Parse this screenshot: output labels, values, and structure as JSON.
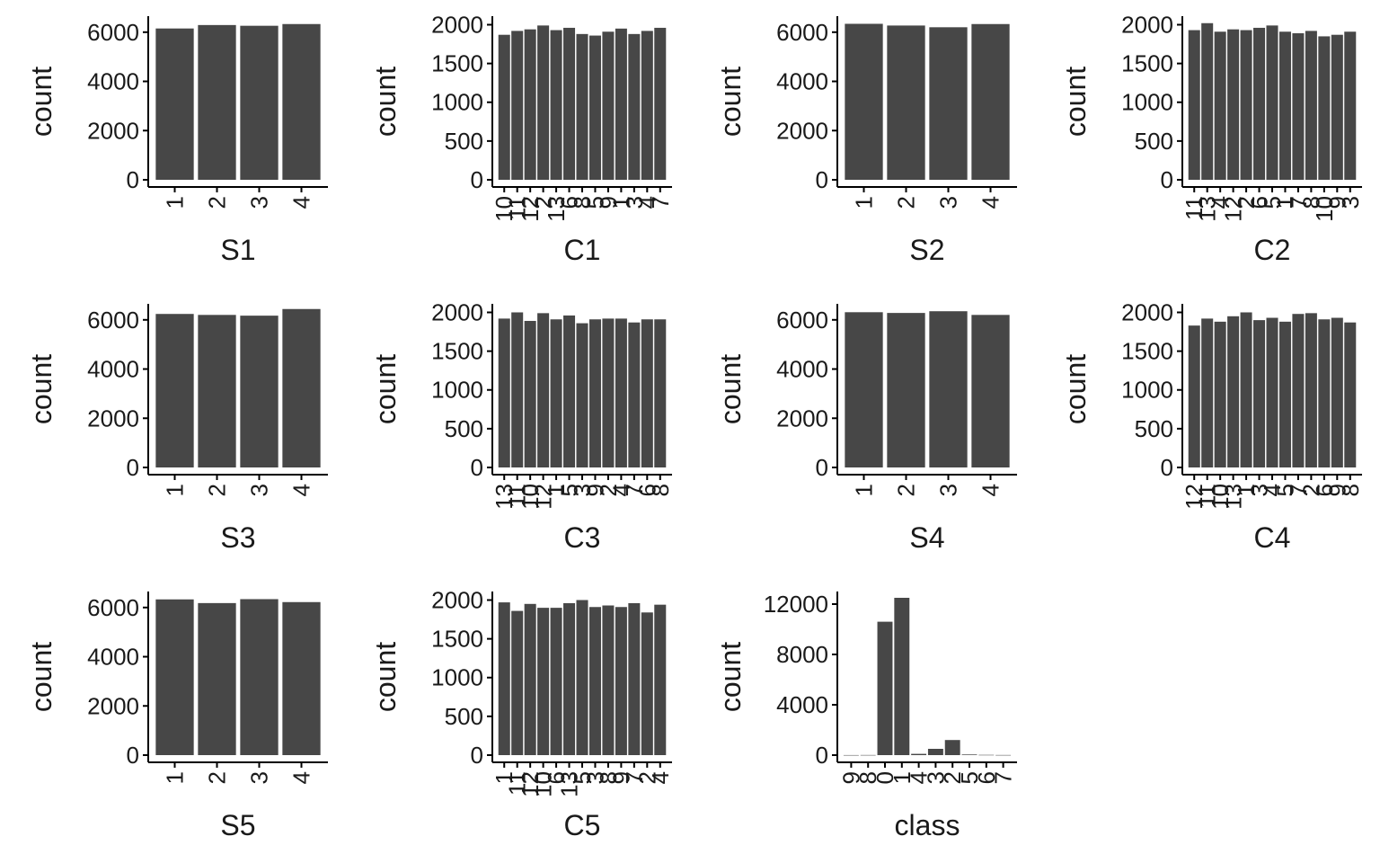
{
  "chart_data": [
    {
      "type": "bar",
      "xlabel": "S1",
      "ylabel": "count",
      "categories": [
        "1",
        "2",
        "3",
        "4"
      ],
      "values": [
        6150,
        6290,
        6260,
        6330
      ],
      "yticks": [
        0,
        2000,
        4000,
        6000
      ],
      "ylim": [
        0,
        6650
      ]
    },
    {
      "type": "bar",
      "xlabel": "C1",
      "ylabel": "count",
      "categories": [
        "10",
        "11",
        "12",
        "2",
        "13",
        "6",
        "8",
        "5",
        "9",
        "1",
        "3",
        "4",
        "7"
      ],
      "values": [
        1870,
        1920,
        1940,
        1990,
        1930,
        1960,
        1880,
        1860,
        1910,
        1950,
        1880,
        1920,
        1960
      ],
      "yticks": [
        0,
        500,
        1000,
        1500,
        2000
      ],
      "ylim": [
        0,
        2110
      ]
    },
    {
      "type": "bar",
      "xlabel": "S2",
      "ylabel": "count",
      "categories": [
        "1",
        "2",
        "3",
        "4"
      ],
      "values": [
        6340,
        6270,
        6200,
        6330
      ],
      "yticks": [
        0,
        2000,
        4000,
        6000
      ],
      "ylim": [
        0,
        6650
      ]
    },
    {
      "type": "bar",
      "xlabel": "C2",
      "ylabel": "count",
      "categories": [
        "11",
        "13",
        "4",
        "12",
        "2",
        "6",
        "5",
        "1",
        "7",
        "8",
        "10",
        "9",
        "3"
      ],
      "values": [
        1930,
        2020,
        1910,
        1940,
        1930,
        1960,
        1990,
        1910,
        1890,
        1920,
        1850,
        1870,
        1910
      ],
      "yticks": [
        0,
        500,
        1000,
        1500,
        2000
      ],
      "ylim": [
        0,
        2110
      ]
    },
    {
      "type": "bar",
      "xlabel": "S3",
      "ylabel": "count",
      "categories": [
        "1",
        "2",
        "3",
        "4"
      ],
      "values": [
        6240,
        6200,
        6170,
        6440
      ],
      "yticks": [
        0,
        2000,
        4000,
        6000
      ],
      "ylim": [
        0,
        6650
      ]
    },
    {
      "type": "bar",
      "xlabel": "C3",
      "ylabel": "count",
      "categories": [
        "13",
        "11",
        "10",
        "12",
        "1",
        "5",
        "3",
        "9",
        "2",
        "4",
        "7",
        "6",
        "8"
      ],
      "values": [
        1920,
        2000,
        1890,
        1990,
        1910,
        1960,
        1860,
        1910,
        1920,
        1920,
        1870,
        1910,
        1910
      ],
      "yticks": [
        0,
        500,
        1000,
        1500,
        2000
      ],
      "ylim": [
        0,
        2110
      ]
    },
    {
      "type": "bar",
      "xlabel": "S4",
      "ylabel": "count",
      "categories": [
        "1",
        "2",
        "3",
        "4"
      ],
      "values": [
        6310,
        6280,
        6350,
        6200
      ],
      "yticks": [
        0,
        2000,
        4000,
        6000
      ],
      "ylim": [
        0,
        6650
      ]
    },
    {
      "type": "bar",
      "xlabel": "C4",
      "ylabel": "count",
      "categories": [
        "12",
        "11",
        "10",
        "13",
        "1",
        "3",
        "4",
        "5",
        "7",
        "2",
        "6",
        "9",
        "8"
      ],
      "values": [
        1830,
        1920,
        1880,
        1950,
        2000,
        1900,
        1930,
        1880,
        1980,
        1990,
        1910,
        1930,
        1870
      ],
      "yticks": [
        0,
        500,
        1000,
        1500,
        2000
      ],
      "ylim": [
        0,
        2110
      ]
    },
    {
      "type": "bar",
      "xlabel": "S5",
      "ylabel": "count",
      "categories": [
        "1",
        "2",
        "3",
        "4"
      ],
      "values": [
        6330,
        6180,
        6340,
        6220
      ],
      "yticks": [
        0,
        2000,
        4000,
        6000
      ],
      "ylim": [
        0,
        6650
      ]
    },
    {
      "type": "bar",
      "xlabel": "C5",
      "ylabel": "count",
      "categories": [
        "1",
        "11",
        "12",
        "10",
        "6",
        "13",
        "5",
        "3",
        "8",
        "9",
        "7",
        "2",
        "4"
      ],
      "values": [
        1970,
        1860,
        1950,
        1900,
        1900,
        1960,
        2000,
        1910,
        1930,
        1910,
        1960,
        1840,
        1940
      ],
      "yticks": [
        0,
        500,
        1000,
        1500,
        2000
      ],
      "ylim": [
        0,
        2110
      ]
    },
    {
      "type": "bar",
      "xlabel": "class",
      "ylabel": "count",
      "categories": [
        "9",
        "8",
        "0",
        "1",
        "4",
        "3",
        "2",
        "5",
        "6",
        "7"
      ],
      "values": [
        5,
        10,
        10600,
        12500,
        100,
        500,
        1200,
        50,
        20,
        10
      ],
      "yticks": [
        0,
        4000,
        8000,
        12000
      ],
      "ylim": [
        0,
        13000
      ]
    }
  ]
}
